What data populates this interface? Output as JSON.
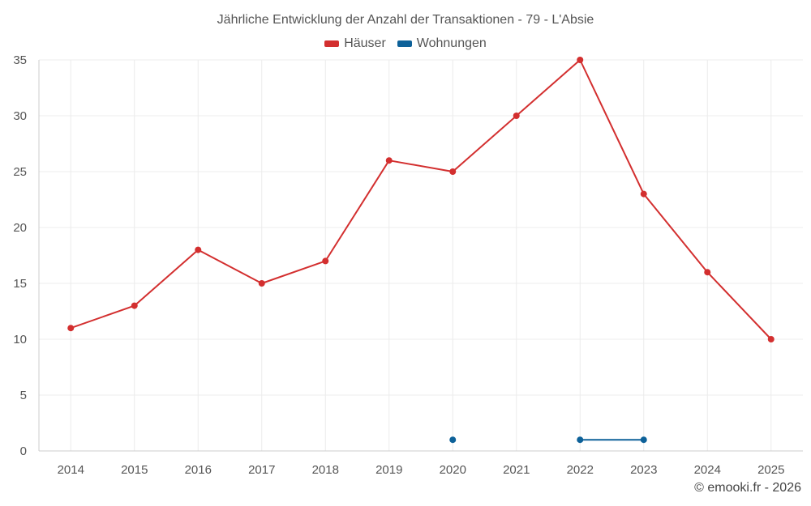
{
  "title": "Jährliche Entwicklung der Anzahl der Transaktionen - 79 - L'Absie",
  "credit": "© emooki.fr - 2026",
  "chart_data": {
    "type": "line",
    "title": "Jährliche Entwicklung der Anzahl der Transaktionen - 79 - L'Absie",
    "xlabel": "",
    "ylabel": "",
    "categories": [
      "2014",
      "2015",
      "2016",
      "2017",
      "2018",
      "2019",
      "2020",
      "2021",
      "2022",
      "2023",
      "2024",
      "2025"
    ],
    "ylim": [
      0,
      35
    ],
    "yticks": [
      0,
      5,
      10,
      15,
      20,
      25,
      30,
      35
    ],
    "grid": true,
    "legend_position": "top-center",
    "series": [
      {
        "name": "Häuser",
        "color": "#d32f2f",
        "values": [
          11,
          13,
          18,
          15,
          17,
          26,
          25,
          30,
          35,
          23,
          16,
          10
        ]
      },
      {
        "name": "Wohnungen",
        "color": "#0d6199",
        "values": [
          null,
          null,
          null,
          null,
          null,
          null,
          1,
          null,
          1,
          1,
          null,
          null
        ]
      }
    ]
  }
}
